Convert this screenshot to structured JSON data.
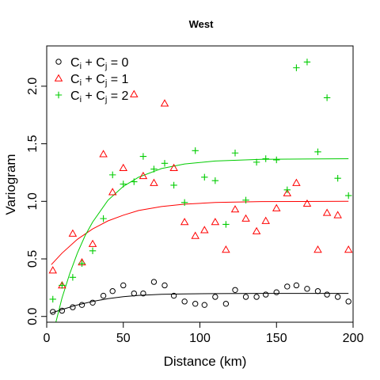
{
  "chart_data": {
    "type": "scatter",
    "title": "West",
    "xlabel": "Distance (km)",
    "ylabel": "Variogram",
    "xlim": [
      0,
      200
    ],
    "ylim": [
      -0.05,
      2.35
    ],
    "x_ticks": [
      0,
      50,
      100,
      150,
      200
    ],
    "y_ticks": [
      0.0,
      0.5,
      1.0,
      1.5,
      2.0
    ],
    "grid": false,
    "legend_position": "top-left",
    "series": [
      {
        "name": "Ci + Cj = 0",
        "label_parts": [
          "C",
          "i",
          " + C",
          "j",
          " = 0"
        ],
        "marker": "circle",
        "color": "#000000",
        "points": [
          {
            "x": 4,
            "y": 0.04
          },
          {
            "x": 10,
            "y": 0.05
          },
          {
            "x": 17,
            "y": 0.08
          },
          {
            "x": 23,
            "y": 0.1
          },
          {
            "x": 30,
            "y": 0.12
          },
          {
            "x": 37,
            "y": 0.18
          },
          {
            "x": 43,
            "y": 0.22
          },
          {
            "x": 50,
            "y": 0.27
          },
          {
            "x": 57,
            "y": 0.2
          },
          {
            "x": 63,
            "y": 0.2
          },
          {
            "x": 70,
            "y": 0.3
          },
          {
            "x": 77,
            "y": 0.27
          },
          {
            "x": 83,
            "y": 0.18
          },
          {
            "x": 90,
            "y": 0.13
          },
          {
            "x": 97,
            "y": 0.11
          },
          {
            "x": 103,
            "y": 0.1
          },
          {
            "x": 110,
            "y": 0.17
          },
          {
            "x": 117,
            "y": 0.11
          },
          {
            "x": 123,
            "y": 0.23
          },
          {
            "x": 130,
            "y": 0.17
          },
          {
            "x": 137,
            "y": 0.17
          },
          {
            "x": 143,
            "y": 0.19
          },
          {
            "x": 150,
            "y": 0.21
          },
          {
            "x": 157,
            "y": 0.26
          },
          {
            "x": 163,
            "y": 0.27
          },
          {
            "x": 170,
            "y": 0.24
          },
          {
            "x": 177,
            "y": 0.22
          },
          {
            "x": 183,
            "y": 0.19
          },
          {
            "x": 190,
            "y": 0.17
          },
          {
            "x": 197,
            "y": 0.13
          }
        ],
        "curve": [
          {
            "x": 3,
            "y": 0.03
          },
          {
            "x": 10,
            "y": 0.06
          },
          {
            "x": 20,
            "y": 0.1
          },
          {
            "x": 30,
            "y": 0.13
          },
          {
            "x": 40,
            "y": 0.155
          },
          {
            "x": 50,
            "y": 0.172
          },
          {
            "x": 60,
            "y": 0.183
          },
          {
            "x": 75,
            "y": 0.192
          },
          {
            "x": 90,
            "y": 0.196
          },
          {
            "x": 110,
            "y": 0.198
          },
          {
            "x": 140,
            "y": 0.2
          },
          {
            "x": 197,
            "y": 0.2
          }
        ]
      },
      {
        "name": "Ci + Cj = 1",
        "label_parts": [
          "C",
          "i",
          " + C",
          "j",
          " = 1"
        ],
        "marker": "triangle",
        "color": "#ff0000",
        "points": [
          {
            "x": 4,
            "y": 0.4
          },
          {
            "x": 10,
            "y": 0.27
          },
          {
            "x": 17,
            "y": 0.72
          },
          {
            "x": 23,
            "y": 0.47
          },
          {
            "x": 30,
            "y": 0.63
          },
          {
            "x": 37,
            "y": 1.41
          },
          {
            "x": 43,
            "y": 1.08
          },
          {
            "x": 50,
            "y": 1.29
          },
          {
            "x": 57,
            "y": 1.93
          },
          {
            "x": 63,
            "y": 1.22
          },
          {
            "x": 70,
            "y": 1.16
          },
          {
            "x": 77,
            "y": 1.85
          },
          {
            "x": 83,
            "y": 1.29
          },
          {
            "x": 90,
            "y": 0.82
          },
          {
            "x": 97,
            "y": 0.7
          },
          {
            "x": 103,
            "y": 0.75
          },
          {
            "x": 110,
            "y": 0.82
          },
          {
            "x": 117,
            "y": 0.58
          },
          {
            "x": 123,
            "y": 0.93
          },
          {
            "x": 130,
            "y": 0.85
          },
          {
            "x": 137,
            "y": 0.74
          },
          {
            "x": 143,
            "y": 0.83
          },
          {
            "x": 150,
            "y": 0.94
          },
          {
            "x": 157,
            "y": 1.07
          },
          {
            "x": 163,
            "y": 1.16
          },
          {
            "x": 170,
            "y": 0.98
          },
          {
            "x": 177,
            "y": 0.58
          },
          {
            "x": 183,
            "y": 0.9
          },
          {
            "x": 190,
            "y": 0.88
          },
          {
            "x": 197,
            "y": 0.58
          }
        ],
        "curve": [
          {
            "x": 3,
            "y": 0.45
          },
          {
            "x": 10,
            "y": 0.55
          },
          {
            "x": 20,
            "y": 0.67
          },
          {
            "x": 30,
            "y": 0.76
          },
          {
            "x": 40,
            "y": 0.83
          },
          {
            "x": 50,
            "y": 0.88
          },
          {
            "x": 60,
            "y": 0.92
          },
          {
            "x": 75,
            "y": 0.955
          },
          {
            "x": 90,
            "y": 0.975
          },
          {
            "x": 110,
            "y": 0.99
          },
          {
            "x": 140,
            "y": 0.998
          },
          {
            "x": 197,
            "y": 1.0
          }
        ]
      },
      {
        "name": "Ci + Cj = 2",
        "label_parts": [
          "C",
          "i",
          " + C",
          "j",
          " = 2"
        ],
        "marker": "plus",
        "color": "#00cc00",
        "points": [
          {
            "x": 4,
            "y": 0.15
          },
          {
            "x": 10,
            "y": 0.27
          },
          {
            "x": 17,
            "y": 0.34
          },
          {
            "x": 23,
            "y": 0.46
          },
          {
            "x": 30,
            "y": 0.57
          },
          {
            "x": 37,
            "y": 0.85
          },
          {
            "x": 43,
            "y": 1.23
          },
          {
            "x": 50,
            "y": 1.15
          },
          {
            "x": 57,
            "y": 1.17
          },
          {
            "x": 63,
            "y": 1.39
          },
          {
            "x": 70,
            "y": 1.28
          },
          {
            "x": 77,
            "y": 1.33
          },
          {
            "x": 83,
            "y": 1.14
          },
          {
            "x": 90,
            "y": 0.99
          },
          {
            "x": 97,
            "y": 1.44
          },
          {
            "x": 103,
            "y": 1.21
          },
          {
            "x": 110,
            "y": 1.18
          },
          {
            "x": 117,
            "y": 0.8
          },
          {
            "x": 123,
            "y": 1.42
          },
          {
            "x": 130,
            "y": 1.01
          },
          {
            "x": 137,
            "y": 1.34
          },
          {
            "x": 143,
            "y": 1.37
          },
          {
            "x": 150,
            "y": 1.36
          },
          {
            "x": 157,
            "y": 1.1
          },
          {
            "x": 163,
            "y": 2.16
          },
          {
            "x": 170,
            "y": 2.21
          },
          {
            "x": 177,
            "y": 1.43
          },
          {
            "x": 183,
            "y": 1.9
          },
          {
            "x": 190,
            "y": 1.2
          },
          {
            "x": 197,
            "y": 1.05
          }
        ],
        "curve": [
          {
            "x": 6,
            "y": -0.05
          },
          {
            "x": 10,
            "y": 0.16
          },
          {
            "x": 15,
            "y": 0.37
          },
          {
            "x": 20,
            "y": 0.55
          },
          {
            "x": 25,
            "y": 0.7
          },
          {
            "x": 30,
            "y": 0.82
          },
          {
            "x": 40,
            "y": 1.01
          },
          {
            "x": 50,
            "y": 1.13
          },
          {
            "x": 60,
            "y": 1.21
          },
          {
            "x": 75,
            "y": 1.285
          },
          {
            "x": 90,
            "y": 1.325
          },
          {
            "x": 110,
            "y": 1.35
          },
          {
            "x": 140,
            "y": 1.365
          },
          {
            "x": 197,
            "y": 1.37
          }
        ]
      }
    ]
  }
}
